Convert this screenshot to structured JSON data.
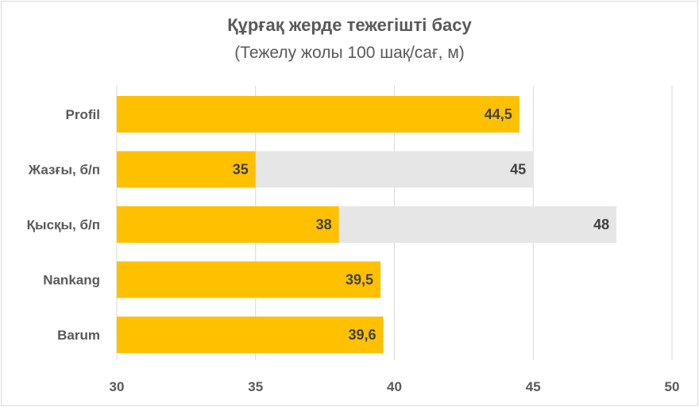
{
  "chart_data": {
    "type": "bar",
    "orientation": "horizontal",
    "title": "Құрғақ жерде тежегішті басу",
    "subtitle": "(Тежелу жолы 100 шақ/сағ, м)",
    "categories": [
      "Profil",
      "Жазғы, б/п",
      "Қысқы, б/п",
      "Nankang",
      "Barum"
    ],
    "series": [
      {
        "values": [
          44.5,
          35,
          38,
          39.5,
          39.6
        ],
        "color": "#ffc000"
      },
      {
        "values": [
          null,
          45,
          48,
          null,
          null
        ],
        "color": "#e7e6e6"
      }
    ],
    "data_labels": {
      "primary": [
        "44,5",
        "35",
        "38",
        "39,5",
        "39,6"
      ],
      "secondary": [
        "",
        "45",
        "48",
        "",
        ""
      ]
    },
    "xlim": [
      30,
      50
    ],
    "x_ticks": [
      30,
      35,
      40,
      45,
      50
    ],
    "x_tick_labels": [
      "30",
      "35",
      "40",
      "45",
      "50"
    ],
    "grid": true,
    "legend": "none"
  }
}
